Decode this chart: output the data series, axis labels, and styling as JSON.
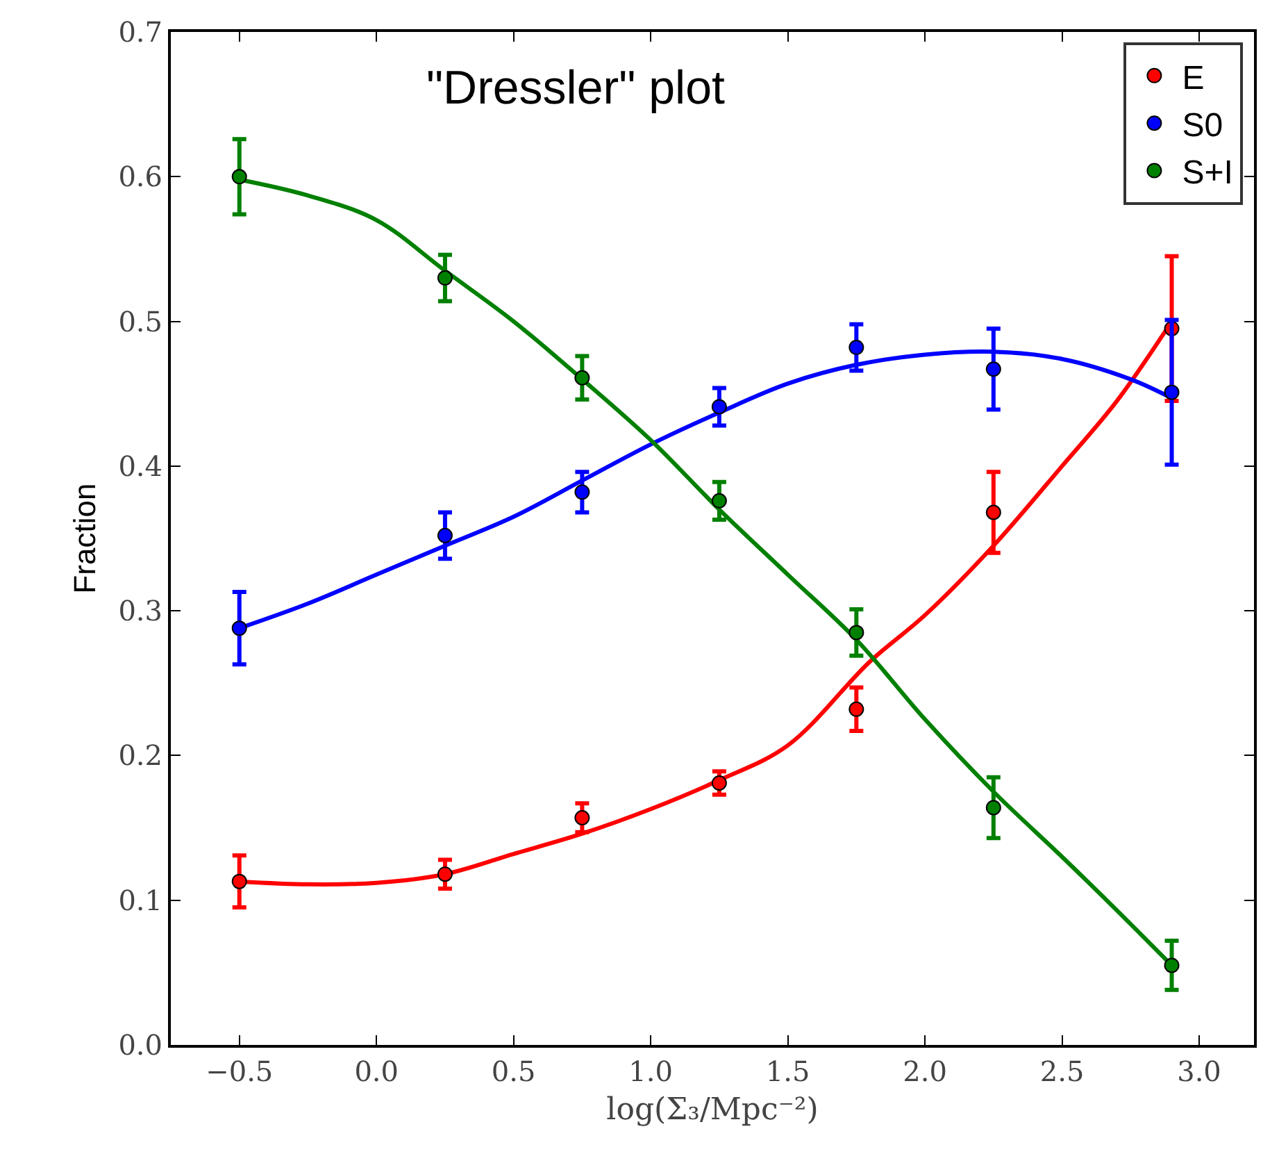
{
  "chart_data": {
    "type": "scatter",
    "title": "\"Dressler\" plot",
    "xlabel": "log(Σ₃/Mpc⁻²)",
    "ylabel": "Fraction",
    "x": [
      -0.5,
      0.25,
      0.75,
      1.25,
      1.75,
      2.25,
      2.9
    ],
    "series": [
      {
        "name": "E",
        "color": "#ff0000",
        "values": [
          0.113,
          0.118,
          0.157,
          0.181,
          0.232,
          0.368,
          0.495
        ],
        "errors": [
          0.018,
          0.01,
          0.01,
          0.008,
          0.015,
          0.028,
          0.05
        ]
      },
      {
        "name": "S0",
        "color": "#0000ff",
        "values": [
          0.288,
          0.352,
          0.382,
          0.441,
          0.482,
          0.467,
          0.451
        ],
        "errors": [
          0.025,
          0.016,
          0.014,
          0.013,
          0.016,
          0.028,
          0.05
        ]
      },
      {
        "name": "S+I",
        "color": "#008000",
        "values": [
          0.6,
          0.53,
          0.461,
          0.376,
          0.285,
          0.164,
          0.055
        ],
        "errors": [
          0.026,
          0.016,
          0.015,
          0.013,
          0.016,
          0.021,
          0.017
        ]
      },
      {
        "type": "line",
        "marker": "none",
        "color": "#ff0000",
        "x": [
          -0.5,
          -0.25,
          0,
          0.25,
          0.5,
          0.75,
          1.0,
          1.25,
          1.5,
          1.8,
          2.0,
          2.25,
          2.5,
          2.7,
          2.9
        ],
        "values": [
          0.113,
          0.111,
          0.112,
          0.118,
          0.132,
          0.146,
          0.163,
          0.183,
          0.207,
          0.265,
          0.297,
          0.345,
          0.4,
          0.445,
          0.5
        ]
      },
      {
        "type": "line",
        "marker": "none",
        "color": "#0000ff",
        "x": [
          -0.5,
          -0.25,
          0,
          0.25,
          0.5,
          0.75,
          1.0,
          1.25,
          1.5,
          1.75,
          2.0,
          2.25,
          2.5,
          2.75,
          2.9
        ],
        "values": [
          0.288,
          0.305,
          0.325,
          0.345,
          0.365,
          0.39,
          0.415,
          0.437,
          0.457,
          0.47,
          0.477,
          0.479,
          0.474,
          0.46,
          0.447
        ]
      },
      {
        "type": "line",
        "marker": "none",
        "color": "#008000",
        "x": [
          -0.5,
          -0.25,
          0,
          0.25,
          0.5,
          0.75,
          1.0,
          1.25,
          1.5,
          1.75,
          2.0,
          2.25,
          2.5,
          2.7,
          2.9
        ],
        "values": [
          0.598,
          0.587,
          0.57,
          0.535,
          0.5,
          0.46,
          0.418,
          0.37,
          0.325,
          0.28,
          0.225,
          0.175,
          0.13,
          0.093,
          0.055
        ]
      }
    ],
    "xlim": [
      -0.75,
      3.2
    ],
    "ylim": [
      0,
      0.7
    ],
    "xticks": [
      {
        "value": -0.5,
        "label": "−0.5"
      },
      {
        "value": 0,
        "label": "0.0"
      },
      {
        "value": 0.5,
        "label": "0.5"
      },
      {
        "value": 1,
        "label": "1.0"
      },
      {
        "value": 1.5,
        "label": "1.5"
      },
      {
        "value": 2,
        "label": "2.0"
      },
      {
        "value": 2.5,
        "label": "2.5"
      },
      {
        "value": 3,
        "label": "3.0"
      }
    ],
    "yticks": [
      {
        "value": 0,
        "label": "0.0"
      },
      {
        "value": 0.1,
        "label": "0.1"
      },
      {
        "value": 0.2,
        "label": "0.2"
      },
      {
        "value": 0.3,
        "label": "0.3"
      },
      {
        "value": 0.4,
        "label": "0.4"
      },
      {
        "value": 0.5,
        "label": "0.5"
      },
      {
        "value": 0.6,
        "label": "0.6"
      },
      {
        "value": 0.7,
        "label": "0.7"
      }
    ],
    "marker": "circle",
    "legend": "top right"
  }
}
